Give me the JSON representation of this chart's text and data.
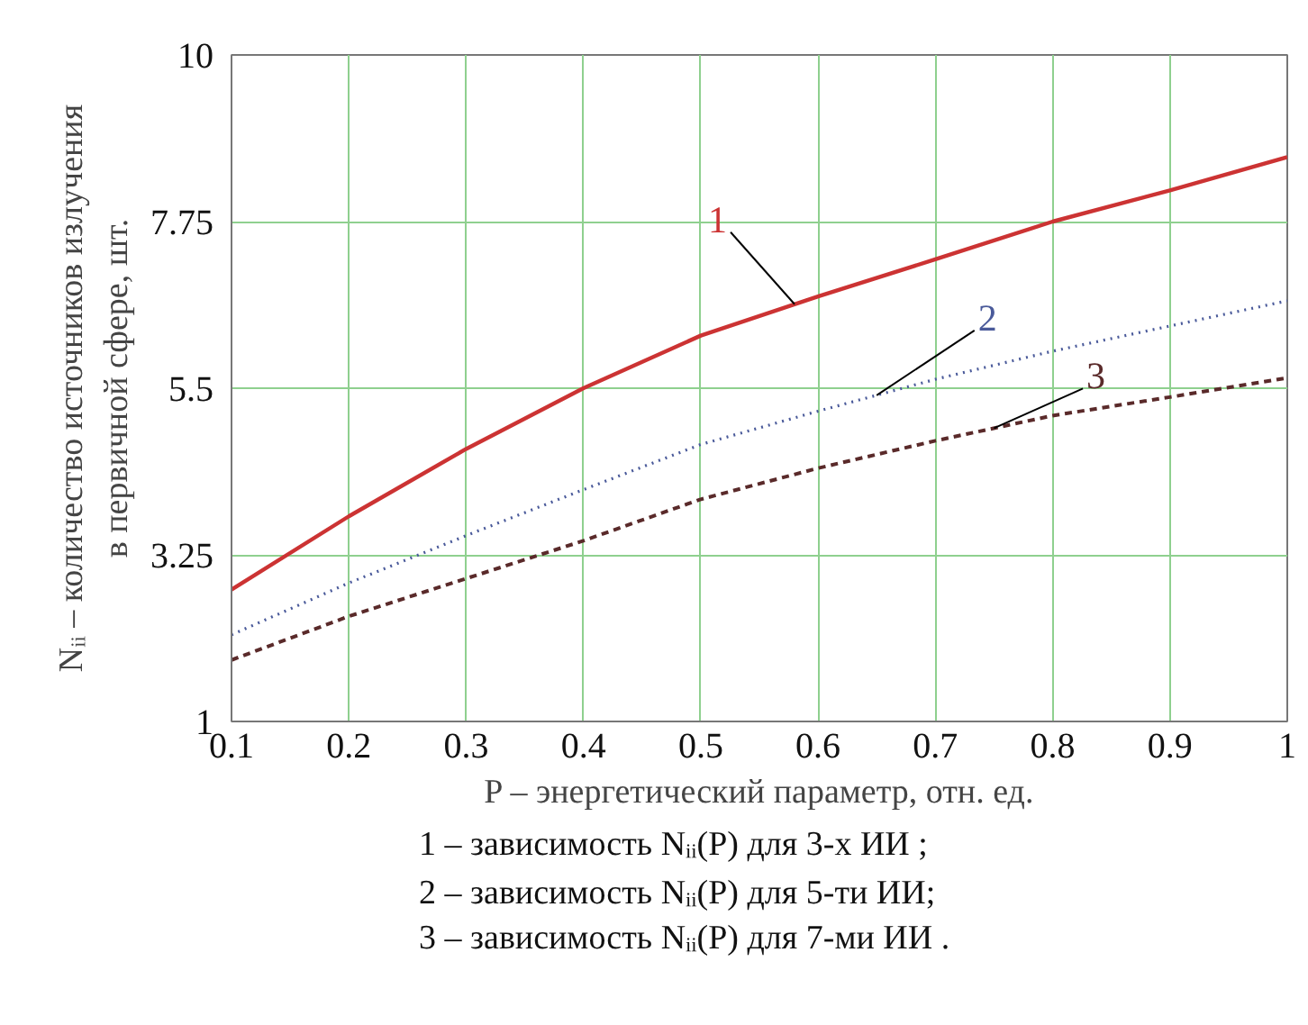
{
  "chart_data": {
    "type": "line",
    "xlabel": "P – энергетический параметр, отн. ед.",
    "ylabel": "Nᵢᵢ – количество источников излучения\nв первичной сфере, шт.",
    "x": [
      0.1,
      0.2,
      0.3,
      0.4,
      0.5,
      0.6,
      0.7,
      0.8,
      0.9,
      1.0
    ],
    "series": [
      {
        "name": "1",
        "color": "#cc3333",
        "line_style": "solid",
        "values": [
          2.78,
          3.77,
          4.68,
          5.5,
          6.21,
          6.74,
          7.24,
          7.75,
          8.17,
          8.62
        ]
      },
      {
        "name": "2",
        "color": "#4a5a9a",
        "line_style": "dotted",
        "values": [
          2.17,
          2.87,
          3.51,
          4.13,
          4.74,
          5.19,
          5.62,
          6.0,
          6.34,
          6.68
        ]
      },
      {
        "name": "3",
        "color": "#5a2a2a",
        "line_style": "dashed",
        "values": [
          1.83,
          2.42,
          2.93,
          3.44,
          4.0,
          4.42,
          4.79,
          5.13,
          5.38,
          5.64
        ]
      }
    ],
    "xlim": [
      0.1,
      1
    ],
    "ylim": [
      1,
      10
    ],
    "xticks": [
      0.1,
      0.2,
      0.3,
      0.4,
      0.5,
      0.6,
      0.7,
      0.8,
      0.9,
      1
    ],
    "yticks": [
      1,
      3.25,
      5.5,
      7.75,
      10
    ],
    "grid": true,
    "annotations": [
      "1 – зависимость Nᵢᵢ(P) для 3-х ИИ ;",
      "2 – зависимость Nᵢᵢ(P) для 5-ти ИИ;",
      "3 – зависимость Nᵢᵢ(P) для 7-ми ИИ ."
    ]
  }
}
